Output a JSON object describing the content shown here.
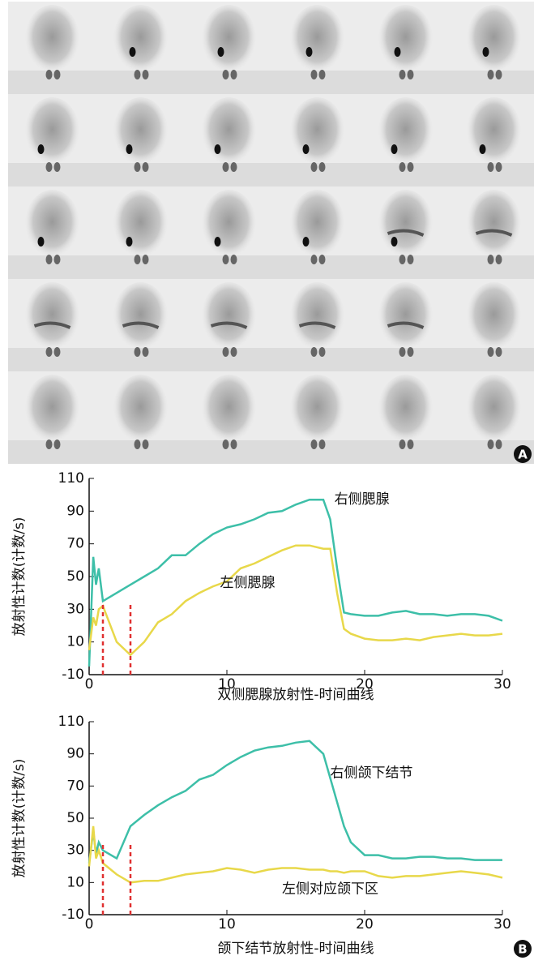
{
  "panel_labels": [
    "A",
    "B"
  ],
  "chart_data": [
    {
      "type": "line",
      "ylabel": "放射性计数(计数/s)",
      "xlabel": "双侧腮腺放射性-时间曲线",
      "x": [
        0,
        0.3,
        0.5,
        0.7,
        1,
        2,
        3,
        4,
        5,
        6,
        7,
        8,
        9,
        10,
        11,
        12,
        13,
        14,
        15,
        16,
        17,
        17.5,
        18,
        18.5,
        19,
        20,
        21,
        22,
        23,
        24,
        25,
        26,
        27,
        28,
        29,
        30
      ],
      "series": [
        {
          "name": "右侧腮腺",
          "color": "#3dbfa8",
          "values": [
            -5,
            62,
            45,
            55,
            35,
            40,
            45,
            50,
            55,
            63,
            63,
            70,
            76,
            80,
            82,
            85,
            89,
            90,
            94,
            97,
            97,
            85,
            55,
            28,
            27,
            26,
            26,
            28,
            29,
            27,
            27,
            26,
            27,
            27,
            26,
            23
          ]
        },
        {
          "name": "左侧腮腺",
          "color": "#e8d84a",
          "values": [
            5,
            25,
            20,
            30,
            32,
            10,
            2,
            10,
            22,
            27,
            35,
            40,
            44,
            47,
            55,
            58,
            62,
            66,
            69,
            69,
            67,
            67,
            40,
            18,
            15,
            12,
            11,
            11,
            12,
            11,
            13,
            14,
            15,
            14,
            14,
            15
          ]
        }
      ],
      "vlines": [
        1,
        3
      ],
      "vline_color": "#e03030",
      "xlim": [
        0,
        30
      ],
      "xticks": [
        0,
        10,
        20,
        30
      ],
      "ylim": [
        -10,
        110
      ],
      "yticks": [
        -10,
        10,
        30,
        50,
        70,
        90,
        110
      ]
    },
    {
      "type": "line",
      "ylabel": "放射性计数(计数/s)",
      "xlabel": "颌下结节放射性-时间曲线",
      "x": [
        0,
        0.3,
        0.5,
        0.7,
        1,
        2,
        3,
        4,
        5,
        6,
        7,
        8,
        9,
        10,
        11,
        12,
        13,
        14,
        15,
        16,
        17,
        17.5,
        18,
        18.5,
        19,
        20,
        21,
        22,
        23,
        24,
        25,
        26,
        27,
        28,
        29,
        30
      ],
      "series": [
        {
          "name": "右侧颌下结节",
          "color": "#3dbfa8",
          "values": [
            22,
            42,
            28,
            35,
            30,
            25,
            45,
            52,
            58,
            63,
            67,
            74,
            77,
            83,
            88,
            92,
            94,
            95,
            97,
            98,
            90,
            75,
            60,
            45,
            35,
            27,
            27,
            25,
            25,
            26,
            26,
            25,
            25,
            24,
            24,
            24
          ]
        },
        {
          "name": "左侧对应颌下区",
          "color": "#e8d84a",
          "values": [
            20,
            45,
            25,
            30,
            22,
            15,
            10,
            11,
            11,
            13,
            15,
            16,
            17,
            19,
            18,
            16,
            18,
            19,
            19,
            18,
            18,
            17,
            17,
            16,
            17,
            17,
            14,
            13,
            14,
            14,
            15,
            16,
            17,
            16,
            15,
            13
          ]
        }
      ],
      "vlines": [
        1,
        3
      ],
      "vline_color": "#e03030",
      "xlim": [
        0,
        30
      ],
      "xticks": [
        0,
        10,
        20,
        30
      ],
      "ylim": [
        -10,
        110
      ],
      "yticks": [
        -10,
        10,
        30,
        50,
        70,
        90,
        110
      ]
    }
  ]
}
